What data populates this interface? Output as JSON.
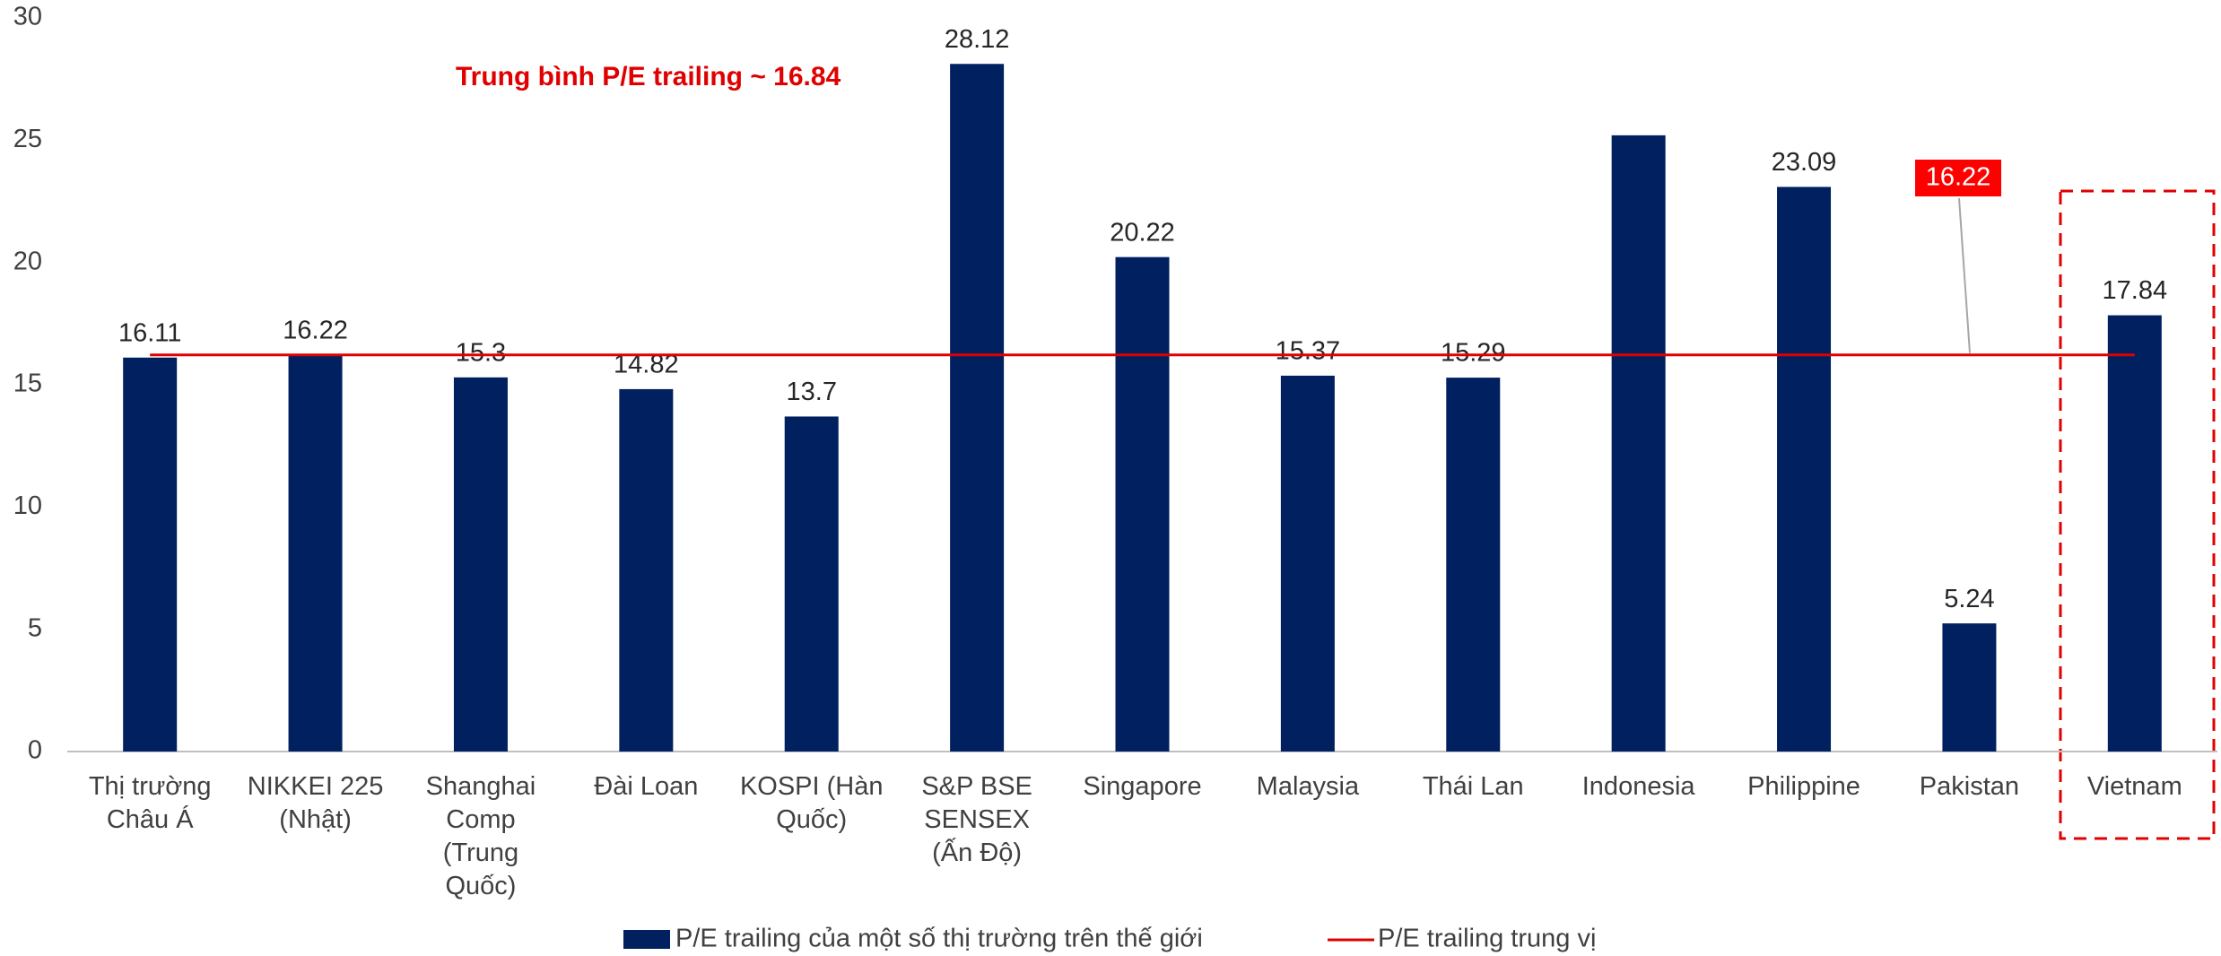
{
  "chart_data": {
    "type": "bar",
    "categories": [
      "Thị trường\nChâu Á",
      "NIKKEI 225\n(Nhật)",
      "Shanghai\nComp\n(Trung\nQuốc)",
      "Đài Loan",
      "KOSPI (Hàn\nQuốc)",
      "S&P BSE\nSENSEX\n(Ấn Độ)",
      "Singapore",
      "Malaysia",
      "Thái Lan",
      "Indonesia",
      "Philippine",
      "Pakistan",
      "Vietnam"
    ],
    "series": [
      {
        "name": "P/E trailing của một số thị trường trên thế giới",
        "color": "#002060",
        "values": [
          16.11,
          16.22,
          15.3,
          14.82,
          13.7,
          28.12,
          20.22,
          15.37,
          15.29,
          25.2,
          23.09,
          5.24,
          17.84
        ],
        "value_labels": [
          "16.11",
          "16.22",
          "15.3",
          "14.82",
          "13.7",
          "28.12",
          "20.22",
          "15.37",
          "15.29",
          null,
          "23.09",
          "5.24",
          "17.84"
        ]
      }
    ],
    "median_line": {
      "name": "P/E trailing trung vị",
      "color": "#e00000",
      "value": 16.22,
      "value_label": "16.22"
    },
    "annotation": "Trung bình P/E trailing ~ 16.84",
    "ylim": [
      0,
      30
    ],
    "yticks": [
      0,
      5,
      10,
      15,
      20,
      25,
      30
    ],
    "grid": false
  }
}
